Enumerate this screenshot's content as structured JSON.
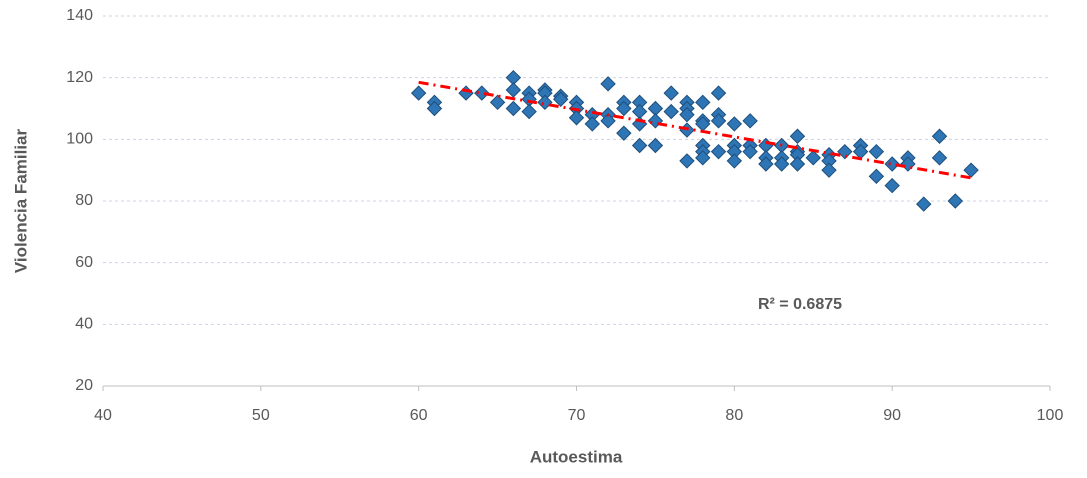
{
  "chart_data": {
    "type": "scatter",
    "x_label": "Autoestima",
    "y_label": "Violencia Familiar",
    "series": [
      {
        "name": "Violencia Familiar",
        "color": "#2e75b6",
        "x": [
          60,
          61,
          61,
          63,
          64,
          65,
          66,
          66,
          66,
          67,
          67,
          67,
          68,
          68,
          68,
          69,
          69,
          70,
          70,
          70,
          71,
          71,
          72,
          72,
          72,
          73,
          73,
          73,
          74,
          74,
          74,
          74,
          75,
          75,
          75,
          76,
          76,
          77,
          77,
          77,
          77,
          77,
          78,
          78,
          78,
          78,
          78,
          78,
          79,
          79,
          79,
          79,
          80,
          80,
          80,
          80,
          81,
          81,
          81,
          82,
          82,
          82,
          83,
          83,
          83,
          84,
          84,
          84,
          84,
          85,
          86,
          86,
          86,
          87,
          88,
          88,
          89,
          89,
          90,
          90,
          91,
          91,
          92,
          93,
          93,
          94,
          95
        ],
        "values": [
          115,
          112,
          110,
          115,
          115,
          112,
          120,
          116,
          110,
          115,
          113,
          109,
          116,
          115,
          112,
          114,
          113,
          112,
          110,
          107,
          108,
          105,
          118,
          108,
          106,
          112,
          110,
          102,
          112,
          109,
          105,
          98,
          110,
          106,
          98,
          115,
          109,
          112,
          110,
          108,
          103,
          93,
          112,
          106,
          105,
          98,
          96,
          94,
          115,
          108,
          106,
          96,
          105,
          98,
          96,
          93,
          106,
          98,
          96,
          98,
          94,
          92,
          98,
          94,
          92,
          101,
          96,
          95,
          92,
          94,
          95,
          93,
          90,
          96,
          98,
          96,
          96,
          88,
          92,
          85,
          94,
          92,
          79,
          101,
          94,
          80,
          90
        ]
      }
    ],
    "trendline": {
      "x": [
        60,
        95
      ],
      "values": [
        118.5,
        87.5
      ],
      "color": "#ff0000",
      "annotation": "R² = 0.6875"
    },
    "xlim": [
      40,
      100
    ],
    "xticks": [
      40,
      50,
      60,
      70,
      80,
      90,
      100
    ],
    "ylim": [
      20,
      140
    ],
    "yticks": [
      20,
      40,
      60,
      80,
      100,
      120,
      140
    ],
    "grid": true
  }
}
